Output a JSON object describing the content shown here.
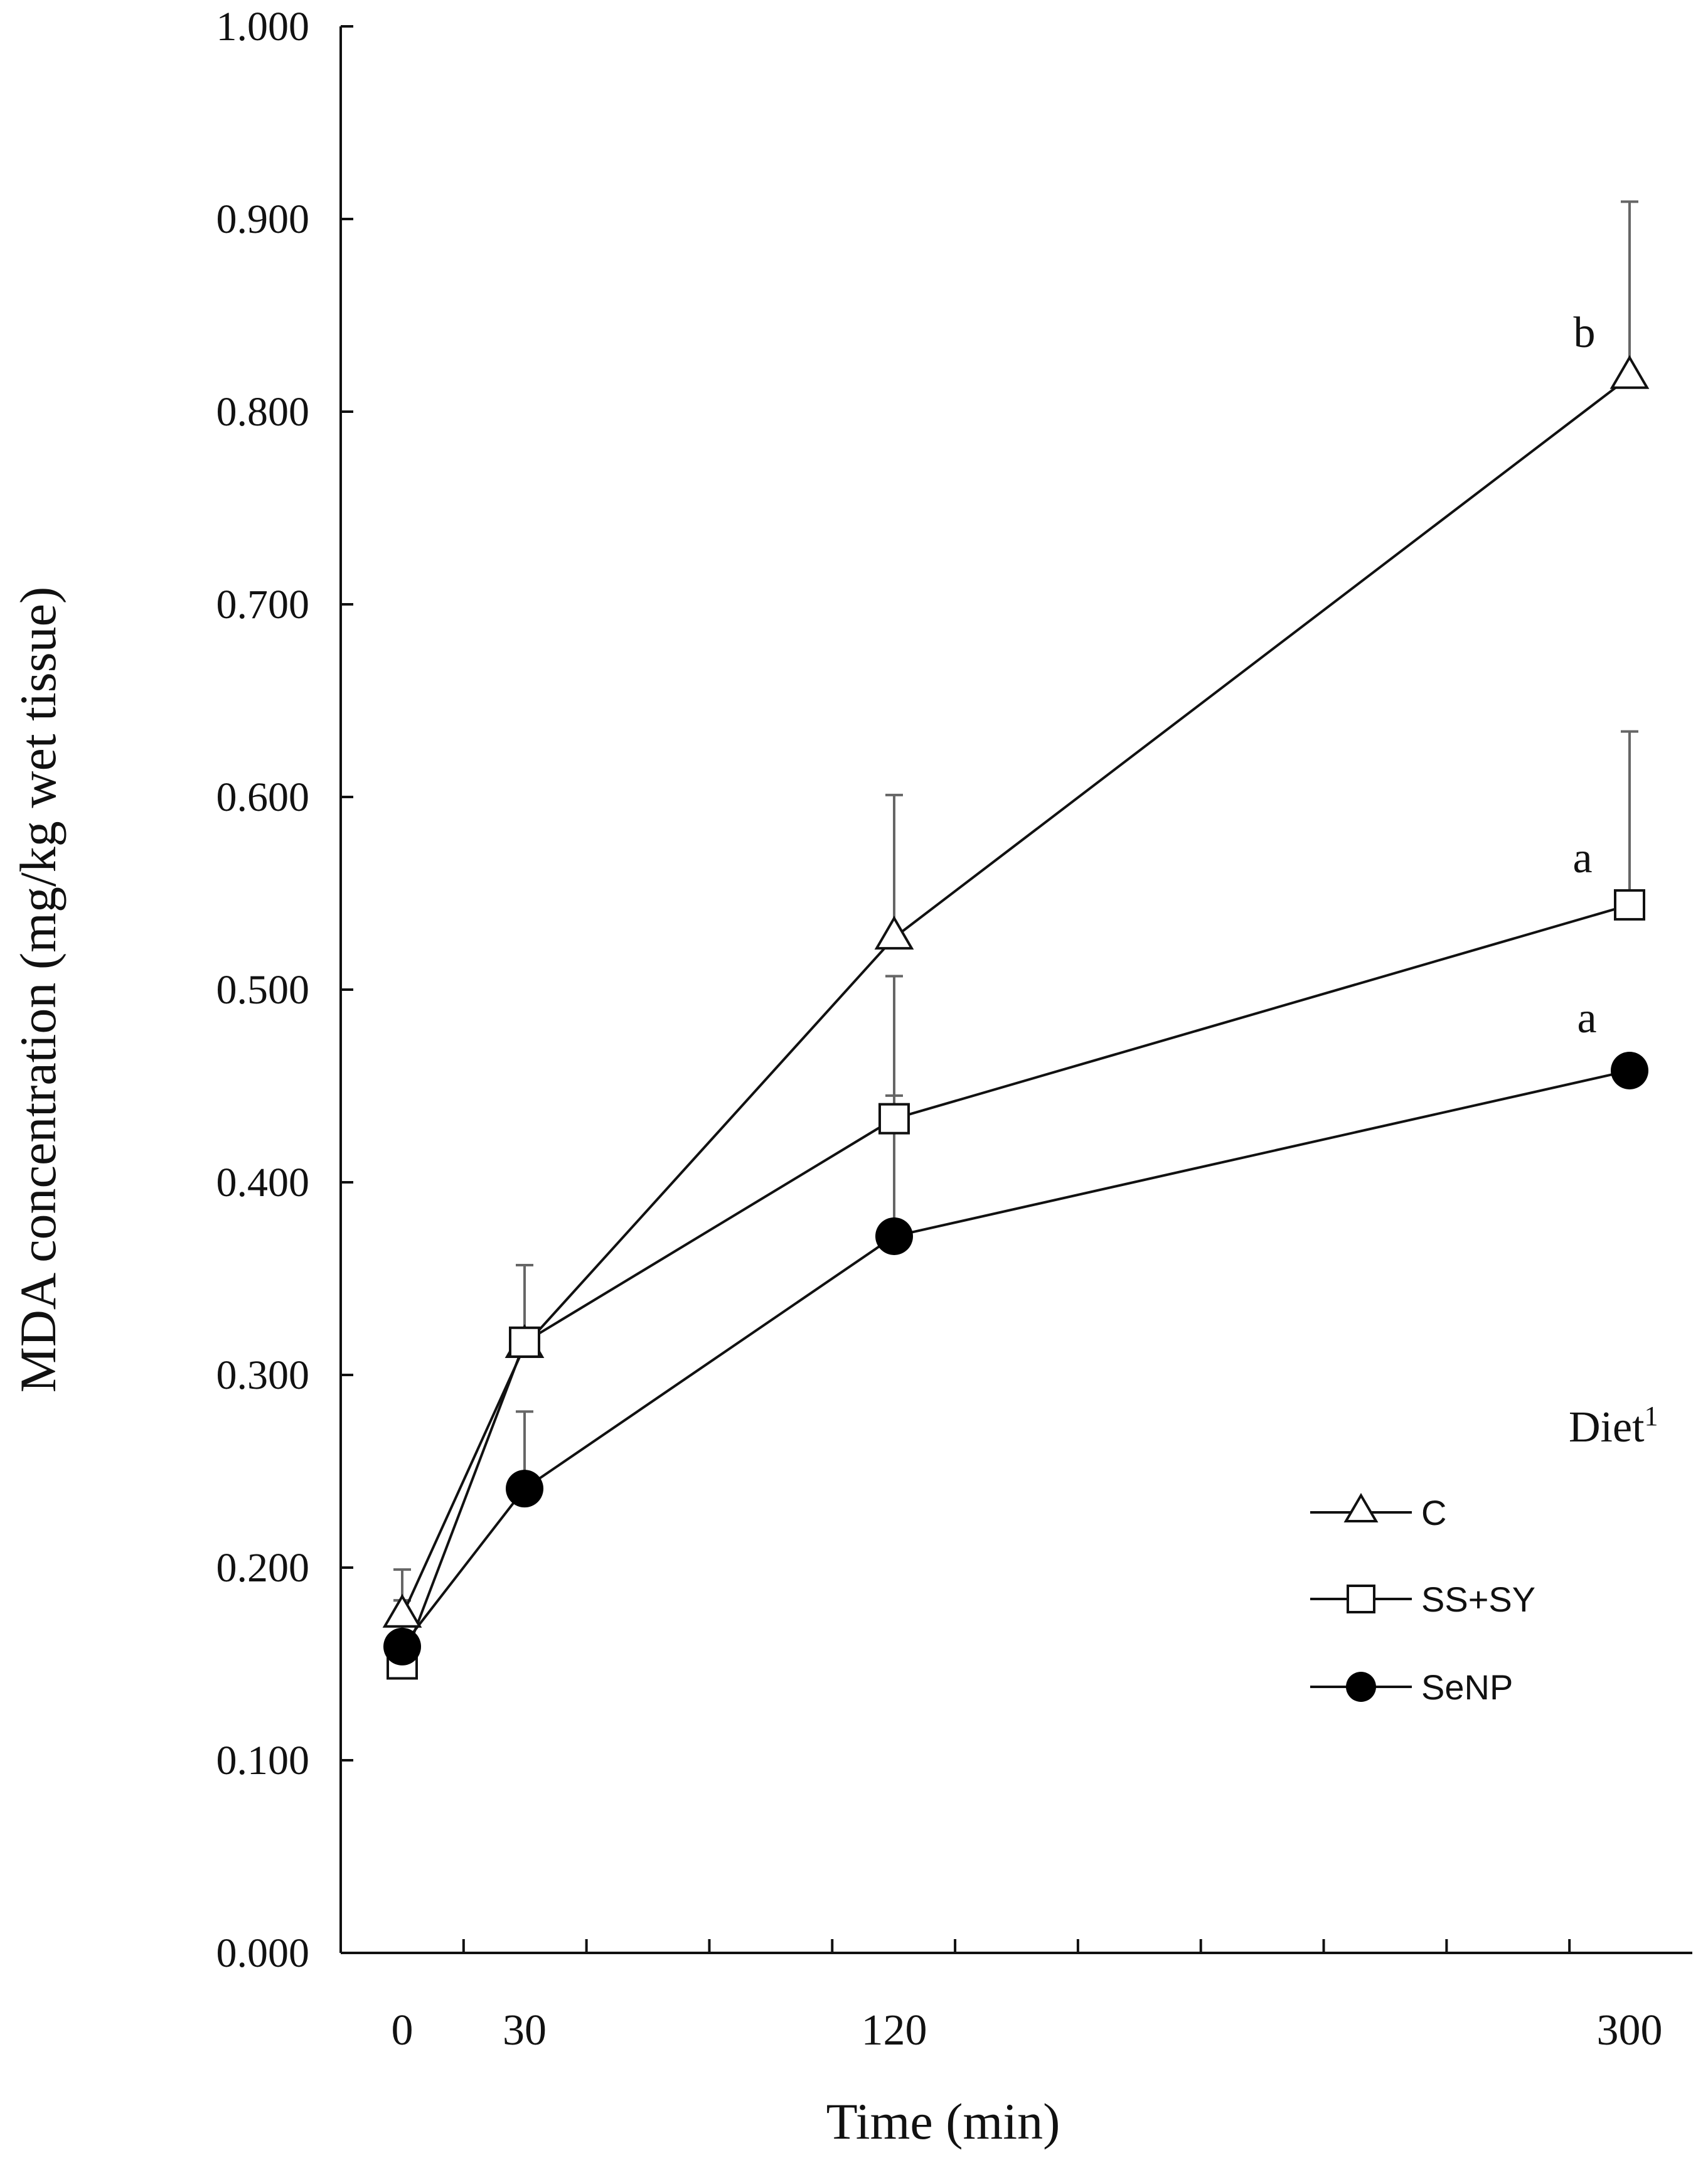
{
  "chart_data": {
    "type": "line",
    "title": "",
    "xlabel": "Time (min)",
    "ylabel": "MDA concentration (mg/kg wet tissue)",
    "x": [
      0,
      30,
      120,
      300
    ],
    "x_tick_labels": [
      "0",
      "30",
      "120",
      "300"
    ],
    "y_tick_labels": [
      "0.000",
      "0.100",
      "0.200",
      "0.300",
      "0.400",
      "0.500",
      "0.600",
      "0.700",
      "0.800",
      "0.900",
      "1.000"
    ],
    "ylim": [
      0,
      1
    ],
    "grid": false,
    "legend": {
      "title": "Diet",
      "title_superscript": "1",
      "position": "lower-right"
    },
    "series": [
      {
        "name": "C",
        "marker": "open-triangle",
        "values": [
          0.175,
          0.315,
          0.527,
          0.818
        ],
        "error_upper": [
          0.199,
          0.357,
          0.601,
          0.909
        ]
      },
      {
        "name": "SS+SY",
        "marker": "open-square",
        "values": [
          0.15,
          0.317,
          0.433,
          0.544
        ],
        "error_upper": [
          0.183,
          0.357,
          0.507,
          0.634
        ]
      },
      {
        "name": "SeNP",
        "marker": "filled-circle",
        "values": [
          0.159,
          0.241,
          0.372,
          0.458
        ],
        "error_upper": [
          0.183,
          0.281,
          0.445,
          0.458
        ]
      }
    ],
    "annotations": [
      {
        "series": "C",
        "x": 300,
        "text": "b"
      },
      {
        "series": "SS+SY",
        "x": 300,
        "text": "a"
      },
      {
        "series": "SeNP",
        "x": 300,
        "text": "a"
      }
    ],
    "colors": {
      "line": "#111111",
      "error_bar": "#666666",
      "marker_fill_open": "#ffffff",
      "marker_fill_solid": "#000000"
    }
  }
}
